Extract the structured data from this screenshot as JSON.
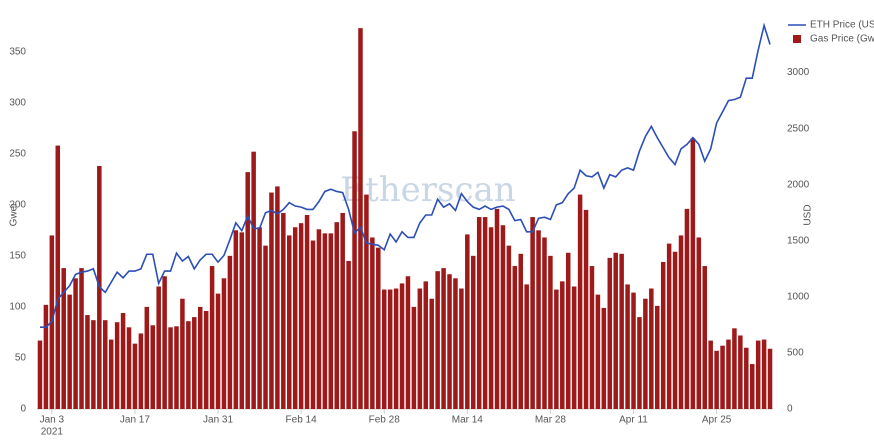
{
  "chart_data": {
    "type": "bar-line",
    "watermark": "Etherscan",
    "y_label": "Gwei",
    "y2_label": "USD",
    "legend": "top-right",
    "x": [
      "2021-01-01",
      "2021-01-02",
      "2021-01-03",
      "2021-01-04",
      "2021-01-05",
      "2021-01-06",
      "2021-01-07",
      "2021-01-08",
      "2021-01-09",
      "2021-01-10",
      "2021-01-11",
      "2021-01-12",
      "2021-01-13",
      "2021-01-14",
      "2021-01-15",
      "2021-01-16",
      "2021-01-17",
      "2021-01-18",
      "2021-01-19",
      "2021-01-20",
      "2021-01-21",
      "2021-01-22",
      "2021-01-23",
      "2021-01-24",
      "2021-01-25",
      "2021-01-26",
      "2021-01-27",
      "2021-01-28",
      "2021-01-29",
      "2021-01-30",
      "2021-01-31",
      "2021-02-01",
      "2021-02-02",
      "2021-02-03",
      "2021-02-04",
      "2021-02-05",
      "2021-02-06",
      "2021-02-07",
      "2021-02-08",
      "2021-02-09",
      "2021-02-10",
      "2021-02-11",
      "2021-02-12",
      "2021-02-13",
      "2021-02-14",
      "2021-02-15",
      "2021-02-16",
      "2021-02-17",
      "2021-02-18",
      "2021-02-19",
      "2021-02-20",
      "2021-02-21",
      "2021-02-22",
      "2021-02-23",
      "2021-02-24",
      "2021-02-25",
      "2021-02-26",
      "2021-02-27",
      "2021-02-28",
      "2021-03-01",
      "2021-03-02",
      "2021-03-03",
      "2021-03-04",
      "2021-03-05",
      "2021-03-06",
      "2021-03-07",
      "2021-03-08",
      "2021-03-09",
      "2021-03-10",
      "2021-03-11",
      "2021-03-12",
      "2021-03-13",
      "2021-03-14",
      "2021-03-15",
      "2021-03-16",
      "2021-03-17",
      "2021-03-18",
      "2021-03-19",
      "2021-03-20",
      "2021-03-21",
      "2021-03-22",
      "2021-03-23",
      "2021-03-24",
      "2021-03-25",
      "2021-03-26",
      "2021-03-27",
      "2021-03-28",
      "2021-03-29",
      "2021-03-30",
      "2021-03-31",
      "2021-04-01",
      "2021-04-02",
      "2021-04-03",
      "2021-04-04",
      "2021-04-05",
      "2021-04-06",
      "2021-04-07",
      "2021-04-08",
      "2021-04-09",
      "2021-04-10",
      "2021-04-11",
      "2021-04-12",
      "2021-04-13",
      "2021-04-14",
      "2021-04-15",
      "2021-04-16",
      "2021-04-17",
      "2021-04-18",
      "2021-04-19",
      "2021-04-20",
      "2021-04-21",
      "2021-04-22",
      "2021-04-23",
      "2021-04-24",
      "2021-04-25",
      "2021-04-26",
      "2021-04-27",
      "2021-04-28",
      "2021-04-29",
      "2021-04-30",
      "2021-05-01",
      "2021-05-02",
      "2021-05-03",
      "2021-05-04"
    ],
    "xlim": [
      "2021-01-01",
      "2021-05-04"
    ],
    "xticks": [
      {
        "value": "2021-01-03",
        "label": "Jan 3",
        "sublabel": "2021"
      },
      {
        "value": "2021-01-17",
        "label": "Jan 17"
      },
      {
        "value": "2021-01-31",
        "label": "Jan 31"
      },
      {
        "value": "2021-02-14",
        "label": "Feb 14"
      },
      {
        "value": "2021-02-28",
        "label": "Feb 28"
      },
      {
        "value": "2021-03-14",
        "label": "Mar 14"
      },
      {
        "value": "2021-03-28",
        "label": "Mar 28"
      },
      {
        "value": "2021-04-11",
        "label": "Apr 11"
      },
      {
        "value": "2021-04-25",
        "label": "Apr 25"
      }
    ],
    "ylim": [
      0,
      380
    ],
    "yticks": [
      0,
      50,
      100,
      150,
      200,
      250,
      300,
      350
    ],
    "y2lim": [
      0,
      3460
    ],
    "y2ticks": [
      0,
      500,
      1000,
      1500,
      2000,
      2500,
      3000
    ],
    "grid": false,
    "series": [
      {
        "name": "ETH Price (USD)",
        "type": "line",
        "axis": "y2",
        "color": "#2b4fb6",
        "values": [
          730,
          730,
          780,
          980,
          1040,
          1100,
          1200,
          1220,
          1230,
          1250,
          1090,
          1040,
          1130,
          1220,
          1170,
          1230,
          1230,
          1250,
          1380,
          1380,
          1120,
          1230,
          1230,
          1390,
          1320,
          1360,
          1250,
          1330,
          1380,
          1380,
          1310,
          1370,
          1510,
          1660,
          1590,
          1720,
          1610,
          1610,
          1750,
          1770,
          1740,
          1780,
          1840,
          1810,
          1800,
          1780,
          1780,
          1850,
          1940,
          1960,
          1940,
          1930,
          1780,
          1570,
          1620,
          1480,
          1470,
          1460,
          1420,
          1560,
          1490,
          1580,
          1530,
          1530,
          1660,
          1730,
          1730,
          1870,
          1800,
          1830,
          1770,
          1920,
          1850,
          1800,
          1780,
          1810,
          1780,
          1800,
          1810,
          1780,
          1680,
          1690,
          1580,
          1580,
          1700,
          1710,
          1690,
          1820,
          1840,
          1920,
          1970,
          2130,
          2080,
          2070,
          2110,
          1970,
          2090,
          2070,
          2130,
          2150,
          2130,
          2300,
          2430,
          2520,
          2420,
          2330,
          2240,
          2180,
          2320,
          2360,
          2420,
          2360,
          2210,
          2320,
          2550,
          2650,
          2750,
          2760,
          2780,
          2950,
          2950,
          3200,
          3420,
          3250
        ]
      },
      {
        "name": "Gas Price (Gwei)",
        "type": "bar",
        "color": "#9e1a1a",
        "values": [
          67,
          102,
          170,
          258,
          138,
          112,
          128,
          138,
          92,
          87,
          238,
          87,
          68,
          85,
          94,
          80,
          64,
          74,
          100,
          82,
          120,
          130,
          80,
          81,
          108,
          86,
          90,
          100,
          96,
          140,
          113,
          128,
          150,
          175,
          173,
          232,
          252,
          178,
          160,
          212,
          218,
          192,
          170,
          178,
          182,
          190,
          165,
          176,
          172,
          172,
          183,
          192,
          145,
          272,
          373,
          210,
          168,
          158,
          117,
          117,
          118,
          123,
          130,
          100,
          118,
          125,
          108,
          135,
          138,
          132,
          128,
          118,
          171,
          150,
          188,
          188,
          178,
          196,
          180,
          160,
          140,
          152,
          122,
          188,
          175,
          168,
          150,
          117,
          125,
          153,
          120,
          210,
          195,
          140,
          112,
          99,
          148,
          153,
          152,
          122,
          114,
          90,
          108,
          118,
          101,
          144,
          162,
          154,
          170,
          196,
          265,
          168,
          140,
          67,
          57,
          62,
          68,
          79,
          72,
          60,
          44,
          67,
          68,
          59
        ]
      }
    ]
  }
}
